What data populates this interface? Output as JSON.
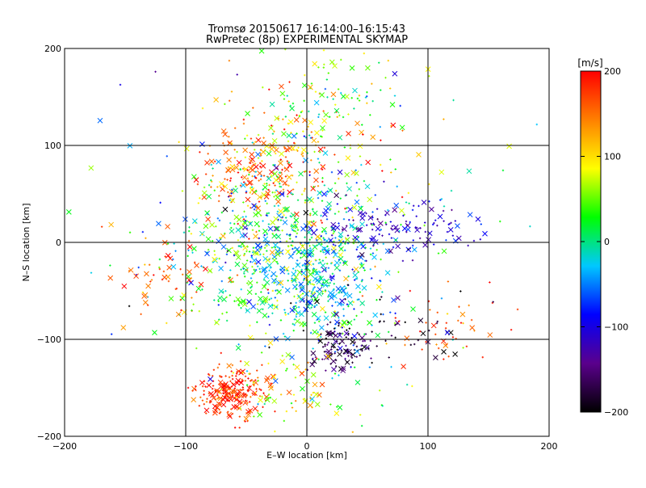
{
  "chart_data": {
    "type": "scatter",
    "title": "Tromsø 20150617 16:14:00–16:15:43",
    "subtitle": "RwPretec (8p) EXPERIMENTAL SKYMAP",
    "xlabel": "E–W location [km]",
    "ylabel": "N–S location [km]",
    "xlim": [
      -200,
      200
    ],
    "ylim": [
      -200,
      200
    ],
    "x_ticks": [
      -200,
      -100,
      0,
      100,
      200
    ],
    "y_ticks": [
      -200,
      -100,
      0,
      100,
      200
    ],
    "x_tick_labels": [
      "−200",
      "−100",
      "0",
      "100",
      "200"
    ],
    "y_tick_labels": [
      "−200",
      "−100",
      "0",
      "100",
      "200"
    ],
    "grid": true,
    "markers": [
      "plus",
      "cross"
    ],
    "colorbar": {
      "label": "[m/s]",
      "range": [
        -200,
        200
      ],
      "ticks": [
        200,
        100,
        0,
        -100,
        -200
      ],
      "tick_labels": [
        "200",
        "100",
        "0",
        "−100",
        "−200"
      ],
      "colormap": [
        "#000000",
        "#5a008c",
        "#0000ff",
        "#00c8ff",
        "#00ff00",
        "#ffff00",
        "#ff8000",
        "#ff0000"
      ]
    },
    "clusters": [
      {
        "name": "south-west red",
        "x": -62,
        "y": -155,
        "sx": 14,
        "sy": 12,
        "n": 220,
        "v": 175,
        "vs": 25
      },
      {
        "name": "north-west red",
        "x": -45,
        "y": 72,
        "sx": 22,
        "sy": 22,
        "n": 140,
        "v": 160,
        "vs": 35
      },
      {
        "name": "north red",
        "x": -5,
        "y": 95,
        "sx": 35,
        "sy": 30,
        "n": 150,
        "v": 120,
        "vs": 60
      },
      {
        "name": "centre green",
        "x": -18,
        "y": -10,
        "sx": 40,
        "sy": 45,
        "n": 600,
        "v": 15,
        "vs": 55
      },
      {
        "name": "centre cyan",
        "x": 10,
        "y": -35,
        "sx": 30,
        "sy": 40,
        "n": 260,
        "v": -35,
        "vs": 30
      },
      {
        "name": "east blue",
        "x": 75,
        "y": 15,
        "sx": 35,
        "sy": 12,
        "n": 120,
        "v": -105,
        "vs": 25
      },
      {
        "name": "south-east purple",
        "x": 28,
        "y": -108,
        "sx": 14,
        "sy": 12,
        "n": 100,
        "v": -160,
        "vs": 30
      },
      {
        "name": "south-east black",
        "x": 55,
        "y": -95,
        "sx": 40,
        "sy": 20,
        "n": 45,
        "v": -190,
        "vs": 15
      },
      {
        "name": "west red",
        "x": -120,
        "y": -40,
        "sx": 25,
        "sy": 25,
        "n": 50,
        "v": 160,
        "vs": 25
      },
      {
        "name": "far-east red",
        "x": 120,
        "y": -90,
        "sx": 25,
        "sy": 20,
        "n": 40,
        "v": 170,
        "vs": 20
      },
      {
        "name": "north green cyan",
        "x": 20,
        "y": 150,
        "sx": 30,
        "sy": 25,
        "n": 80,
        "v": 40,
        "vs": 60
      },
      {
        "name": "south yellow",
        "x": -15,
        "y": -150,
        "sx": 25,
        "sy": 20,
        "n": 80,
        "v": 80,
        "vs": 50
      },
      {
        "name": "scattered",
        "x": 0,
        "y": 0,
        "sx": 90,
        "sy": 90,
        "n": 200,
        "v": 0,
        "vs": 110
      }
    ]
  }
}
